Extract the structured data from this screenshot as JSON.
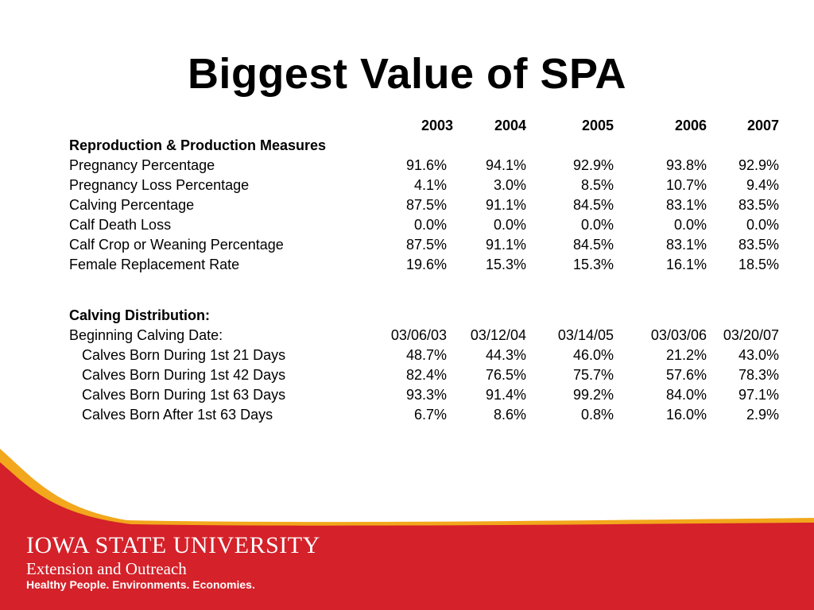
{
  "title": "Biggest Value of SPA",
  "years": [
    "2003",
    "2004",
    "2005",
    "2006",
    "2007"
  ],
  "section1": {
    "heading": "Reproduction & Production Measures",
    "rows": [
      {
        "label": "Pregnancy Percentage",
        "values": [
          "91.6%",
          "94.1%",
          "92.9%",
          "93.8%",
          "92.9%"
        ]
      },
      {
        "label": "Pregnancy Loss Percentage",
        "values": [
          "4.1%",
          "3.0%",
          "8.5%",
          "10.7%",
          "9.4%"
        ]
      },
      {
        "label": "Calving Percentage",
        "values": [
          "87.5%",
          "91.1%",
          "84.5%",
          "83.1%",
          "83.5%"
        ]
      },
      {
        "label": "Calf Death Loss",
        "values": [
          "0.0%",
          "0.0%",
          "0.0%",
          "0.0%",
          "0.0%"
        ]
      },
      {
        "label": "Calf Crop or Weaning Percentage",
        "values": [
          "87.5%",
          "91.1%",
          "84.5%",
          "83.1%",
          "83.5%"
        ]
      },
      {
        "label": "Female Replacement Rate",
        "values": [
          "19.6%",
          "15.3%",
          "15.3%",
          "16.1%",
          "18.5%"
        ]
      }
    ]
  },
  "section2": {
    "heading": "Calving Distribution:",
    "date_row": {
      "label": "Beginning Calving Date:",
      "values": [
        "03/06/03",
        "03/12/04",
        "03/14/05",
        "03/03/06",
        "03/20/07"
      ]
    },
    "rows": [
      {
        "label": "Calves Born During 1st 21 Days",
        "values": [
          "48.7%",
          "44.3%",
          "46.0%",
          "21.2%",
          "43.0%"
        ]
      },
      {
        "label": "Calves Born During 1st 42 Days",
        "values": [
          "82.4%",
          "76.5%",
          "75.7%",
          "57.6%",
          "78.3%"
        ]
      },
      {
        "label": "Calves Born During 1st 63 Days",
        "values": [
          "93.3%",
          "91.4%",
          "99.2%",
          "84.0%",
          "97.1%"
        ]
      },
      {
        "label": "Calves Born After 1st 63 Days",
        "values": [
          "6.7%",
          "8.6%",
          "0.8%",
          "16.0%",
          "2.9%"
        ]
      }
    ]
  },
  "footer": {
    "university": "IOWA STATE UNIVERSITY",
    "unit": "Extension and Outreach",
    "tagline": "Healthy People. Environments. Economies."
  },
  "colors": {
    "band_red": "#d4212a",
    "band_gold": "#f2a71c",
    "text": "#000000"
  }
}
